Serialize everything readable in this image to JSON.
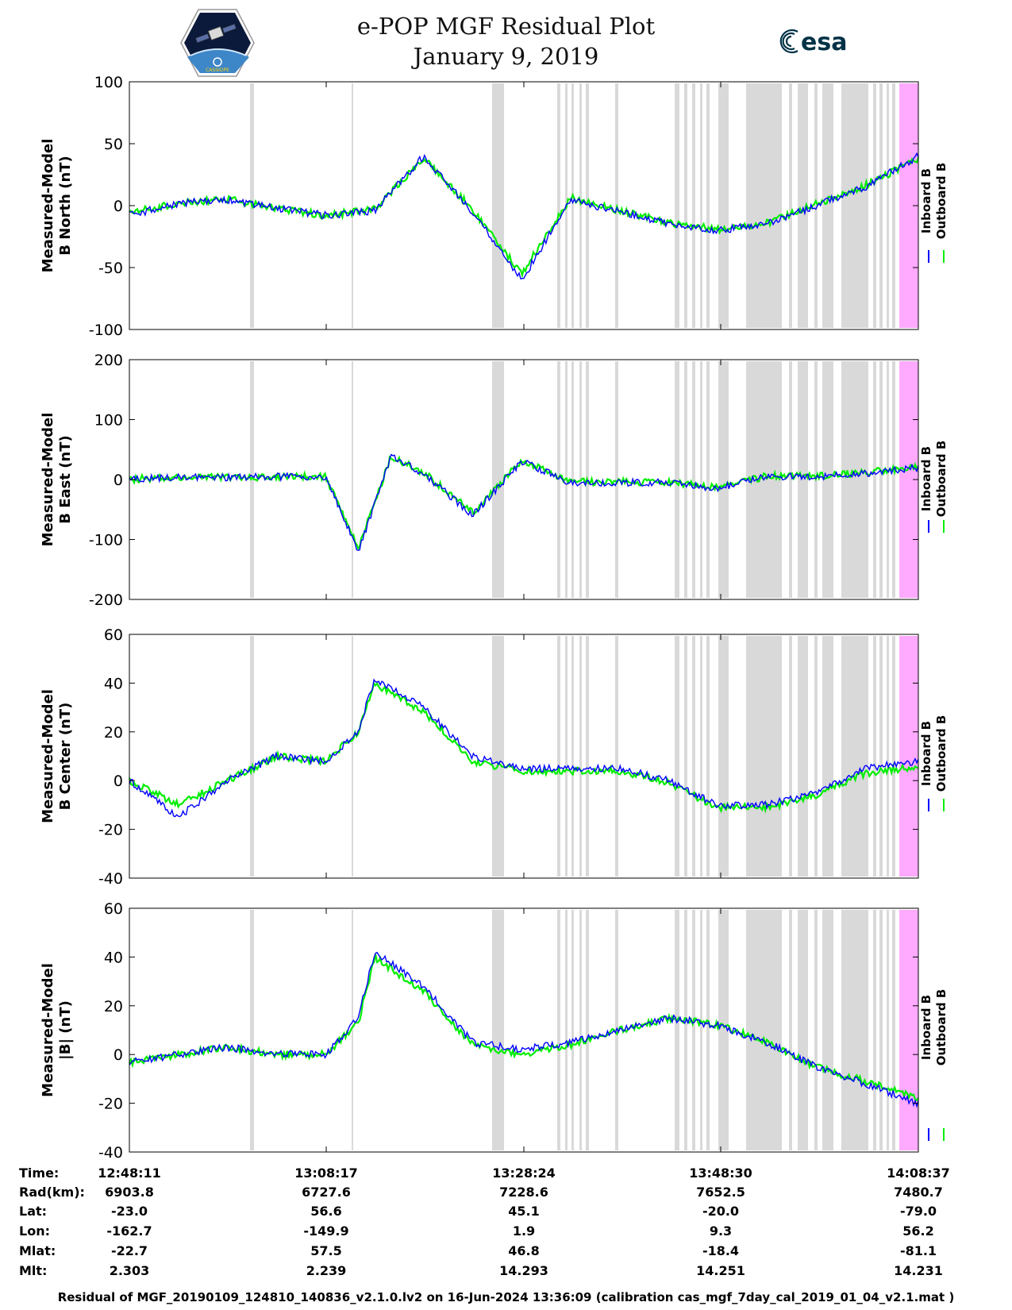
{
  "header": {
    "title": "e-POP MGF Residual Plot",
    "date": "January 9, 2019",
    "cassiope_logo_text": "CASSIOPE",
    "esa_logo_text": "esa"
  },
  "colors": {
    "inboard": "#0000ff",
    "outboard": "#00ee00",
    "gap_shading": "#d9d9d9",
    "end_shading": "#ffaaff"
  },
  "chart_data": [
    {
      "type": "line",
      "ylabel": [
        "Measured-Model",
        "B North (nT)"
      ],
      "ylim": [
        -100,
        100
      ],
      "yticks": [
        100,
        50,
        0,
        -50,
        -100
      ],
      "legend": [
        "Inboard B",
        "Outboard B"
      ],
      "x": [
        0,
        300,
        600,
        900,
        1200,
        1500,
        1800,
        2100,
        2400,
        2700,
        3000,
        3300,
        3600,
        3900,
        4200,
        4500,
        4826
      ],
      "series": [
        {
          "name": "Inboard B",
          "values": [
            -8,
            2,
            5,
            -2,
            -8,
            -4,
            40,
            -5,
            -60,
            5,
            -5,
            -15,
            -20,
            -15,
            0,
            15,
            40
          ]
        },
        {
          "name": "Outboard B",
          "values": [
            -6,
            2,
            5,
            -2,
            -8,
            -3,
            38,
            -3,
            -55,
            6,
            -4,
            -14,
            -19,
            -14,
            1,
            16,
            38
          ]
        }
      ]
    },
    {
      "type": "line",
      "ylabel": [
        "Measured-Model",
        "B East (nT)"
      ],
      "ylim": [
        -200,
        200
      ],
      "yticks": [
        200,
        100,
        0,
        -100,
        -200
      ],
      "legend": [
        "Inboard B",
        "Outboard B"
      ],
      "x": [
        0,
        300,
        600,
        900,
        1200,
        1400,
        1600,
        1800,
        2100,
        2400,
        2700,
        3000,
        3300,
        3600,
        3900,
        4200,
        4500,
        4826
      ],
      "series": [
        {
          "name": "Inboard B",
          "values": [
            0,
            5,
            3,
            5,
            5,
            -120,
            40,
            10,
            -60,
            30,
            -5,
            -5,
            -5,
            -15,
            5,
            5,
            10,
            20
          ]
        },
        {
          "name": "Outboard B",
          "values": [
            0,
            5,
            3,
            5,
            5,
            -115,
            38,
            12,
            -55,
            32,
            -4,
            -4,
            -4,
            -14,
            6,
            6,
            12,
            22
          ]
        }
      ]
    },
    {
      "type": "line",
      "ylabel": [
        "Measured-Model",
        "B Center (nT)"
      ],
      "ylim": [
        -40,
        60
      ],
      "yticks": [
        60,
        40,
        20,
        0,
        -20,
        -40
      ],
      "legend": [
        "Inboard B",
        "Outboard B"
      ],
      "x": [
        0,
        300,
        600,
        900,
        1200,
        1400,
        1500,
        1800,
        2100,
        2400,
        2700,
        3000,
        3300,
        3600,
        3900,
        4200,
        4500,
        4826
      ],
      "series": [
        {
          "name": "Inboard B",
          "values": [
            0,
            -15,
            0,
            10,
            8,
            20,
            42,
            30,
            10,
            5,
            5,
            5,
            0,
            -10,
            -10,
            -5,
            5,
            8
          ]
        },
        {
          "name": "Outboard B",
          "values": [
            0,
            -10,
            0,
            10,
            8,
            20,
            40,
            28,
            8,
            4,
            4,
            4,
            -1,
            -11,
            -11,
            -6,
            3,
            6
          ]
        }
      ]
    },
    {
      "type": "line",
      "ylabel": [
        "Measured-Model",
        "|B| (nT)"
      ],
      "ylim": [
        -40,
        60
      ],
      "yticks": [
        60,
        40,
        20,
        0,
        -20,
        -40
      ],
      "legend": [
        "Inboard B",
        "Outboard B"
      ],
      "x": [
        0,
        300,
        600,
        900,
        1200,
        1400,
        1500,
        1800,
        2100,
        2400,
        2700,
        3000,
        3300,
        3600,
        3900,
        4200,
        4500,
        4826
      ],
      "series": [
        {
          "name": "Inboard B",
          "values": [
            -3,
            0,
            3,
            0,
            0,
            15,
            42,
            28,
            5,
            2,
            5,
            10,
            15,
            12,
            5,
            -5,
            -12,
            -20
          ]
        },
        {
          "name": "Outboard B",
          "values": [
            -3,
            0,
            3,
            0,
            0,
            13,
            40,
            26,
            4,
            0,
            4,
            10,
            15,
            12,
            5,
            -5,
            -11,
            -18
          ]
        }
      ]
    }
  ],
  "info": {
    "rows": [
      {
        "label": "Time:",
        "values": [
          "12:48:11",
          "13:08:17",
          "13:28:24",
          "13:48:30",
          "14:08:37"
        ]
      },
      {
        "label": "Rad(km):",
        "values": [
          "6903.8",
          "6727.6",
          "7228.6",
          "7652.5",
          "7480.7"
        ]
      },
      {
        "label": "Lat:",
        "values": [
          "-23.0",
          "56.6",
          "45.1",
          "-20.0",
          "-79.0"
        ]
      },
      {
        "label": "Lon:",
        "values": [
          "-162.7",
          "-149.9",
          "1.9",
          "9.3",
          "56.2"
        ]
      },
      {
        "label": "Mlat:",
        "values": [
          "-22.7",
          "57.5",
          "46.8",
          "-18.4",
          "-81.1"
        ]
      },
      {
        "label": "Mlt:",
        "values": [
          "2.303",
          "2.239",
          "14.293",
          "14.251",
          "14.231"
        ]
      }
    ]
  },
  "footer": "Residual of MGF_20190109_124810_140836_v2.1.0.lv2 on 16-Jun-2024 13:36:09 (calibration cas_mgf_7day_cal_2019_01_04_v2.1.mat )"
}
